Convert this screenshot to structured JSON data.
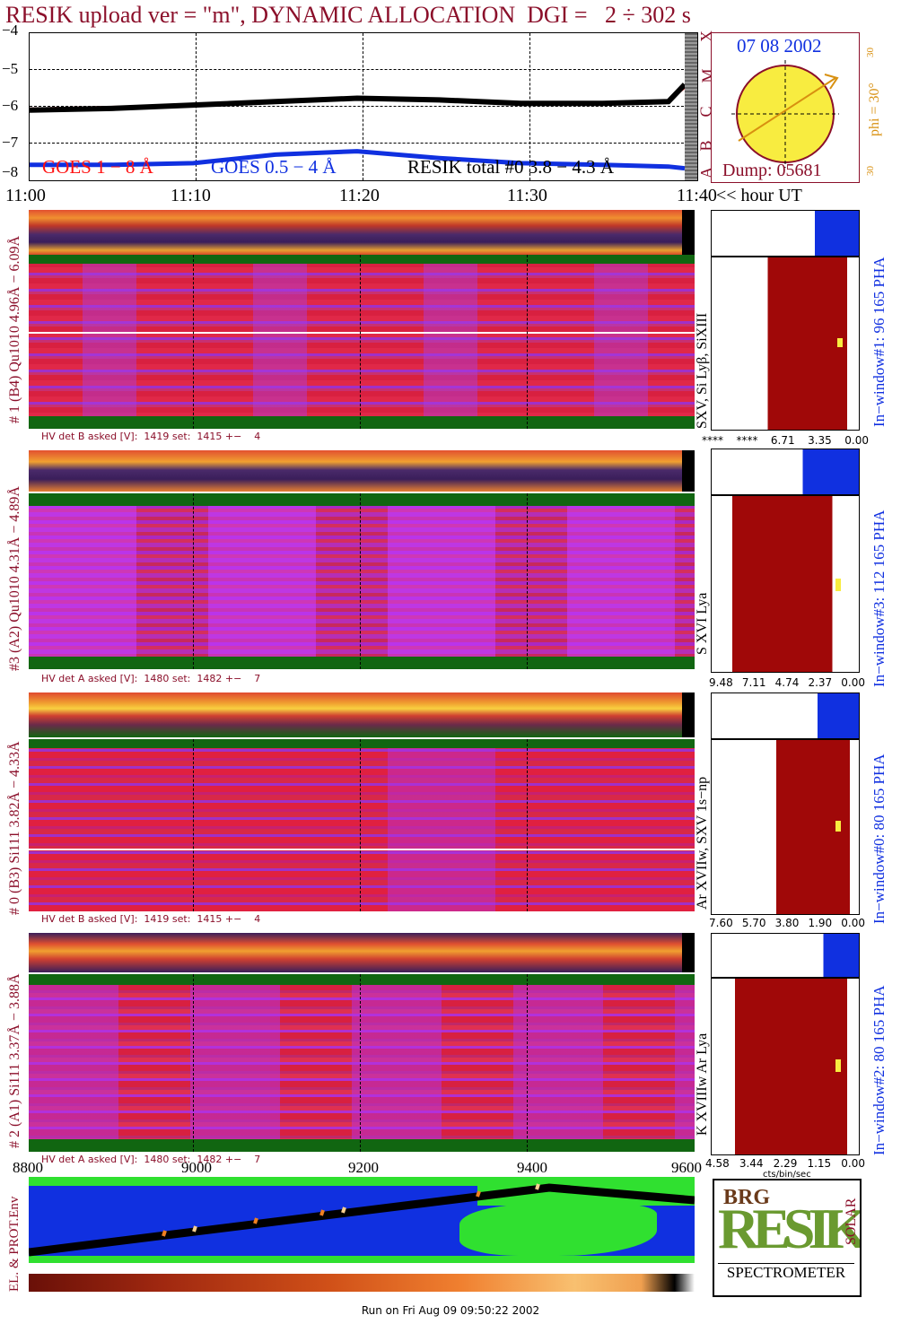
{
  "title": "RESIK upload ver = \"m\", DYNAMIC ALLOCATION  DGI =   2 ÷ 302 s",
  "lightcurve": {
    "y_ticks": [
      "−4",
      "−5",
      "−6",
      "−7",
      "−8"
    ],
    "x_ticks": [
      "11:00",
      "11:10",
      "11:20",
      "11:30",
      "11:40"
    ],
    "x_unit_label": "<< hour UT",
    "goes_class": [
      "X",
      "M",
      "C",
      "B",
      "A"
    ],
    "legend": [
      "GOES 1 − 8 Å",
      "GOES 0.5 − 4 Å",
      "RESIK total #0  3.8 − 4.3 Å"
    ],
    "colors": {
      "goes_long": "#ff1010",
      "goes_short": "#1030e0",
      "resik": "#000000",
      "title": "#8b0f2a"
    }
  },
  "chart_data": {
    "type": "line",
    "title": "RESIK upload ver = \"m\", DYNAMIC ALLOCATION  DGI =   2 ÷ 302 s",
    "xlabel": "<< hour UT",
    "ylabel": "",
    "xlim": [
      "11:00",
      "11:40"
    ],
    "ylim": [
      -8.2,
      -3.9
    ],
    "x": [
      "11:00",
      "11:05",
      "11:10",
      "11:15",
      "11:20",
      "11:25",
      "11:30",
      "11:35",
      "11:39",
      "11:40"
    ],
    "series": [
      {
        "name": "GOES 1 − 8 Å",
        "values": [
          -6.1,
          -6.05,
          -6.0,
          -5.9,
          -5.8,
          -5.85,
          -5.95,
          -5.95,
          -5.9,
          -5.5
        ]
      },
      {
        "name": "GOES 0.5 − 4 Å",
        "values": [
          -7.75,
          -7.75,
          -7.7,
          -7.45,
          -7.35,
          -7.55,
          -7.7,
          -7.75,
          -7.8,
          -7.85
        ]
      },
      {
        "name": "RESIK total #0  3.8 − 4.3 Å",
        "values": [
          -6.15,
          -6.1,
          -6.0,
          -5.9,
          -5.8,
          -5.85,
          -5.95,
          -5.95,
          -5.9,
          -5.4
        ]
      }
    ]
  },
  "sun": {
    "date": "07 08 2002",
    "phi": "phi = 30°",
    "angle_top": "30",
    "angle_bottom": "30",
    "dump": "Dump: 05681"
  },
  "panels": [
    {
      "id": "b4",
      "left_label": "# 1 (B4) Qu1010 4.96Å − 6.09Å",
      "right_label": "SXV, Si Lyβ, SiXIII",
      "window_label": "In−window#1:  96 165 PHA",
      "hv": "HV det B asked [V]:  1419 set:  1415 +−    4",
      "scale": [
        "****",
        "****",
        "6.71",
        "3.35",
        "0.00"
      ]
    },
    {
      "id": "a2",
      "left_label": "#3 (A2) Qu1010  4.31Å − 4.89Å",
      "right_label": "S XVI Lya",
      "window_label": "In−window#3:  112 165 PHA",
      "hv": "HV det A asked [V]:  1480 set:  1482 +−    7",
      "scale": [
        "9.48",
        "7.11",
        "4.74",
        "2.37",
        "0.00"
      ]
    },
    {
      "id": "b3",
      "left_label": "# 0 (B3) Si111  3.82Å − 4.33Å",
      "right_label": "Ar XVIIw, SXV 1s−np",
      "window_label": "In−window#0:  80 165 PHA",
      "hv": "HV det B asked [V]:  1419 set:  1415 +−    4",
      "scale": [
        "7.60",
        "5.70",
        "3.80",
        "1.90",
        "0.00"
      ]
    },
    {
      "id": "a1",
      "left_label": "# 2 (A1) Si111  3.37Å − 3.88Å",
      "right_label": "K XVIIIw  Ar Lya",
      "window_label": "In−window#2:  80 165 PHA",
      "hv": "HV det A asked [V]:  1480 set:  1482 +−    7",
      "scale": [
        "4.58",
        "3.44",
        "2.29",
        "1.15",
        "0.00"
      ]
    }
  ],
  "orbit": {
    "x_ticks": [
      "8800",
      "9000",
      "9200",
      "9400",
      "9600"
    ],
    "label": "EL. & PROT.Env",
    "cts_label": "cts/bin/sec"
  },
  "logo": {
    "line1": "BRG",
    "line2": "RESIK",
    "side": "SOLAR",
    "caption": "SPECTROMETER"
  },
  "footer": "Run on Fri Aug 09 09:50:22 2002"
}
